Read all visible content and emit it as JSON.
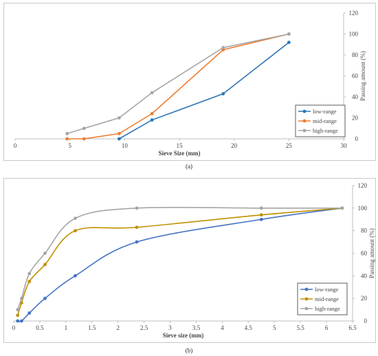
{
  "chart_data": [
    {
      "type": "line",
      "panel_label": "(a)",
      "xlabel": "Sieve Size (mm)",
      "ylabel": "Passing amount (%)",
      "xlim": [
        0,
        30
      ],
      "ylim": [
        0,
        120
      ],
      "xticks": [
        "0",
        "5",
        "10",
        "15",
        "20",
        "25",
        "30"
      ],
      "yticks": [
        "0",
        "20",
        "40",
        "60",
        "80",
        "100",
        "120"
      ],
      "grid": false,
      "y_axis_side": "right",
      "legend_position": "bottom-right",
      "smooth": false,
      "series": [
        {
          "name": "low-range",
          "color": "#2e75b6",
          "x": [
            9.5,
            12.5,
            19,
            25
          ],
          "y": [
            0,
            18,
            43,
            92
          ]
        },
        {
          "name": "mid-range",
          "color": "#ed7d31",
          "x": [
            4.75,
            6.3,
            9.5,
            12.5,
            19,
            25
          ],
          "y": [
            0,
            0,
            5,
            24,
            85,
            100
          ]
        },
        {
          "name": "high-range",
          "color": "#a5a5a5",
          "x": [
            4.75,
            6.3,
            9.5,
            12.5,
            19,
            25
          ],
          "y": [
            5,
            10,
            20,
            44,
            87,
            100
          ]
        }
      ]
    },
    {
      "type": "line",
      "panel_label": "(b)",
      "xlabel": "Sieve size (mm)",
      "ylabel": "Passing amount (%)",
      "xlim": [
        0,
        6.5
      ],
      "ylim": [
        0,
        120
      ],
      "xticks": [
        "0",
        "0.5",
        "1",
        "1.5",
        "2",
        "2.5",
        "3",
        "3.5",
        "4",
        "4.5",
        "5",
        "5.5",
        "6",
        "6.5"
      ],
      "yticks": [
        "0",
        "20",
        "40",
        "60",
        "80",
        "100",
        "120"
      ],
      "grid": false,
      "y_axis_side": "right",
      "legend_position": "bottom-right",
      "smooth": true,
      "series": [
        {
          "name": "low-range",
          "color": "#4472c4",
          "x": [
            0.075,
            0.15,
            0.3,
            0.6,
            1.18,
            2.36,
            4.75,
            6.3
          ],
          "y": [
            0,
            0,
            7,
            20,
            40,
            70,
            90,
            100
          ]
        },
        {
          "name": "mid-range",
          "color": "#bf9000",
          "x": [
            0.075,
            0.15,
            0.3,
            0.6,
            1.18,
            2.36,
            4.75,
            6.3
          ],
          "y": [
            5,
            16,
            35,
            50,
            80,
            83,
            94,
            100
          ]
        },
        {
          "name": "high-range",
          "color": "#a5a5a5",
          "x": [
            0.075,
            0.15,
            0.3,
            0.6,
            1.18,
            2.36,
            4.75,
            6.3
          ],
          "y": [
            10,
            20,
            42,
            60,
            91,
            100,
            100,
            100
          ]
        }
      ]
    }
  ]
}
